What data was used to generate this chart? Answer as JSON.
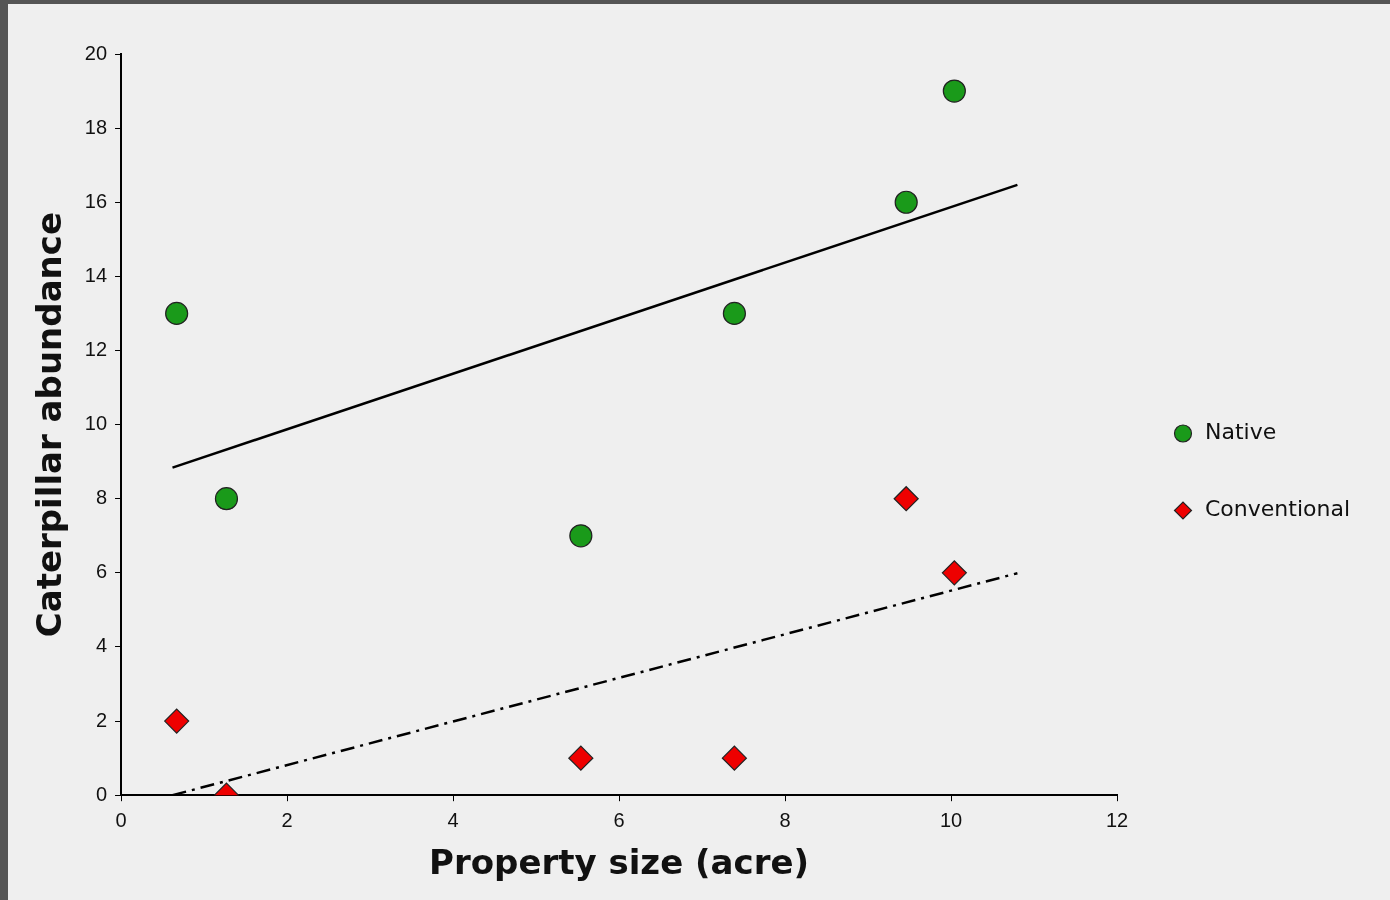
{
  "chart_data": {
    "type": "scatter",
    "xlabel": "Property size (acre)",
    "ylabel": "Caterpillar abundance",
    "xlim": [
      0,
      12
    ],
    "xticks": [
      0,
      2,
      4,
      6,
      8,
      10,
      12
    ],
    "ylim": [
      0,
      20
    ],
    "yticks": [
      0,
      2,
      4,
      6,
      8,
      10,
      12,
      14,
      16,
      18,
      20
    ],
    "grid": false,
    "legend": "right",
    "series": [
      {
        "name": "Native",
        "marker": "circle",
        "color": "#1a9a1a",
        "x": [
          0.67,
          1.27,
          5.54,
          7.39,
          9.46,
          10.04
        ],
        "values": [
          13,
          8,
          7,
          13,
          16,
          19
        ]
      },
      {
        "name": "Conventional",
        "marker": "diamond",
        "color": "#ee0000",
        "x": [
          0.67,
          1.27,
          5.54,
          7.39,
          9.46,
          10.04
        ],
        "values": [
          2,
          0,
          1,
          1,
          8,
          6
        ]
      },
      {
        "type": "line",
        "color": "#000000",
        "line_style": "solid",
        "marker": "none",
        "x": [
          0.62,
          10.8
        ],
        "values": [
          8.84,
          16.47
        ]
      },
      {
        "type": "line",
        "color": "#000000",
        "line_style": "dashed",
        "marker": "none",
        "x": [
          0.62,
          10.8
        ],
        "values": [
          0,
          5.99
        ]
      }
    ]
  }
}
